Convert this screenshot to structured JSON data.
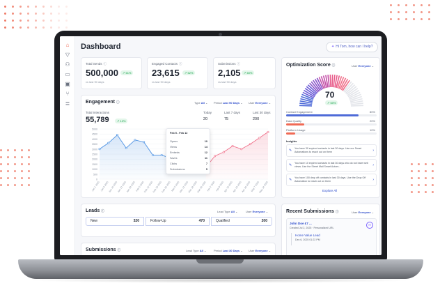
{
  "header": {
    "title": "Dashboard",
    "help_label": "Hi Tom, how can I help?"
  },
  "sidebar": {
    "items": [
      {
        "icon": "home-icon",
        "glyph": "⌂"
      },
      {
        "icon": "funnel-icon",
        "glyph": "▽"
      },
      {
        "icon": "users-icon",
        "glyph": "⚇"
      },
      {
        "icon": "message-icon",
        "glyph": "▭"
      },
      {
        "icon": "inbox-icon",
        "glyph": "▣"
      },
      {
        "icon": "workflow-icon",
        "glyph": "⑂"
      },
      {
        "icon": "database-icon",
        "glyph": "≣"
      }
    ]
  },
  "stats": [
    {
      "label": "Total Sends",
      "value": "500,000",
      "change": "61%",
      "note": "vs last 90 days"
    },
    {
      "label": "Engaged Contacts",
      "value": "23,615",
      "change": "62%",
      "note": "vs last 90 days"
    },
    {
      "label": "Submissions",
      "value": "2,105",
      "change": "60%",
      "note": "vs last 90 days"
    }
  ],
  "engagement": {
    "title": "Engagement",
    "filters": {
      "type_label": "Type",
      "type_value": "All",
      "period_label": "Period",
      "period_value": "Last 90 Days",
      "user_label": "User",
      "user_value": "Everyone"
    },
    "total_label": "Total Interactions",
    "total_value": "55,789",
    "total_change": "12%",
    "today_label": "Today",
    "today_value": "20",
    "last7_label": "Last 7 days",
    "last7_value": "75",
    "last30_label": "Last 30 days",
    "last30_value": "200",
    "tooltip": {
      "title": "Feb 5 - Feb 12",
      "rows": [
        {
          "label": "Opens",
          "value": "10"
        },
        {
          "label": "Views",
          "value": "14"
        },
        {
          "label": "Embeds",
          "value": "12"
        },
        {
          "label": "Saves",
          "value": "11"
        },
        {
          "label": "Clicks",
          "value": "7"
        },
        {
          "label": "Submissions",
          "value": "5"
        }
      ]
    }
  },
  "chart_data": {
    "type": "area",
    "categories": [
      "Jan 1 2025",
      "Jan 8 2025",
      "Jan 15 2025",
      "Jan 22 2025",
      "Jan 29 2025",
      "Feb 5 2025",
      "Feb 12 2025",
      "Feb 19 2025",
      "Feb 26 2025",
      "Mar 5 2025",
      "Mar 12 2025",
      "Mar 19 2025",
      "Mar 26 2025",
      "Apr 2 2025",
      "Apr 9 2025",
      "Apr 16 2025",
      "Apr 23 2025",
      "Apr 30 2025",
      "May 7 2025",
      "May 14 2025"
    ],
    "values": [
      3000,
      3600,
      4400,
      3100,
      3900,
      3700,
      2400,
      2400,
      2100,
      2100,
      1800,
      1500,
      1200,
      2300,
      2700,
      3300,
      3000,
      3500,
      4100,
      4700
    ],
    "ylim": [
      0,
      5000
    ],
    "yticks": [
      "5000",
      "4500",
      "4000",
      "3500",
      "3000",
      "2500",
      "2000",
      "1500",
      "1000",
      "500",
      "0"
    ],
    "split_index": 12,
    "colors": {
      "before": "#4a90e2",
      "after": "#f0708a"
    }
  },
  "optimization": {
    "title": "Optimization Score",
    "user_label": "User",
    "user_value": "Everyone",
    "score": "70",
    "change": "60%",
    "score_fraction": 0.7,
    "metrics": [
      {
        "label": "Contact Engagement",
        "value": "80%",
        "fraction": 0.8,
        "color": "#4f6bd8"
      },
      {
        "label": "Data Quality",
        "value": "20%",
        "fraction": 0.2,
        "color": "#f06a55"
      },
      {
        "label": "Platform Usage",
        "value": "10%",
        "fraction": 0.1,
        "color": "#f06a55"
      }
    ],
    "insights_label": "Insights",
    "insights": [
      "You have 30 expired contacts in last 30 days. Use our Smart Automations to reach out on them",
      "You have 10 expired contacts in last 30 days who do not have web views. Use the Street Mail Smart Autom...",
      "You have 100 drop off contacts in last 30 days. Use the Drop Off Automation to reach out on them"
    ],
    "explore_label": "Explore All"
  },
  "leads": {
    "title": "Leads",
    "type_label": "Lead Type",
    "type_value": "All",
    "user_label": "User",
    "user_value": "Everyone",
    "stages": [
      {
        "label": "New",
        "count": "320"
      },
      {
        "label": "Follow-Up",
        "count": "470"
      },
      {
        "label": "Qualified",
        "count": "200"
      }
    ]
  },
  "submissions": {
    "title": "Submissions",
    "type_label": "Lead Type",
    "type_value": "All",
    "period_label": "Period",
    "period_value": "Last 30 Days",
    "user_label": "User",
    "user_value": "Everyone"
  },
  "recent": {
    "title": "Recent Submissions",
    "user_label": "User",
    "user_value": "Everyone",
    "item_name": "John Doe £7 ...",
    "item_meta": "Created Jul 2, 2025 · Personalized URL",
    "sub_name": "Home Value Lead",
    "sub_date": "Dec 6, 2025 01:22 PM",
    "badge": "H"
  }
}
